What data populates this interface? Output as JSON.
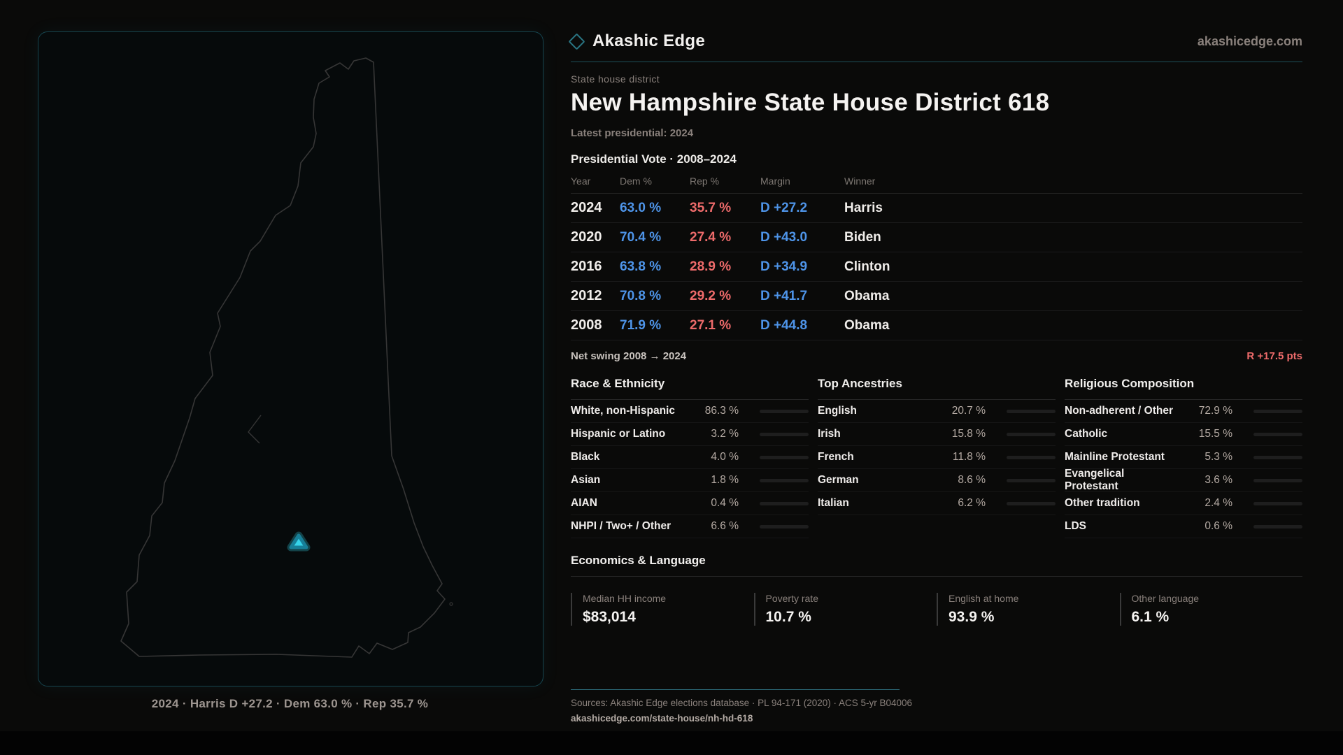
{
  "brand": {
    "name": "Akashic Edge",
    "domain": "akashicedge.com",
    "logo_icon": "diamond-icon"
  },
  "page": {
    "kicker": "State house district",
    "title": "New Hampshire State House District 618",
    "latest": "Latest presidential: 2024"
  },
  "map": {
    "caption": "2024 · Harris D +27.2 · Dem 63.0 % · Rep 35.7 %"
  },
  "election_table": {
    "title": "Presidential Vote · 2008–2024",
    "columns": [
      "Year",
      "Dem %",
      "Rep %",
      "Margin",
      "Winner"
    ],
    "rows": [
      {
        "year": "2024",
        "dem": "63.0 %",
        "rep": "35.7 %",
        "margin": "D +27.2",
        "winner": "Harris"
      },
      {
        "year": "2020",
        "dem": "70.4 %",
        "rep": "27.4 %",
        "margin": "D +43.0",
        "winner": "Biden"
      },
      {
        "year": "2016",
        "dem": "63.8 %",
        "rep": "28.9 %",
        "margin": "D +34.9",
        "winner": "Clinton"
      },
      {
        "year": "2012",
        "dem": "70.8 %",
        "rep": "29.2 %",
        "margin": "D +41.7",
        "winner": "Obama"
      },
      {
        "year": "2008",
        "dem": "71.9 %",
        "rep": "27.1 %",
        "margin": "D +44.8",
        "winner": "Obama"
      }
    ],
    "net_swing_label": "Net swing 2008 → 2024",
    "net_swing_value": "R +17.5 pts"
  },
  "demographics": {
    "race": {
      "title": "Race & Ethnicity",
      "rows": [
        {
          "label": "White, non-Hispanic",
          "value": "86.3 %",
          "pct": 86.3
        },
        {
          "label": "Hispanic or Latino",
          "value": "3.2 %",
          "pct": 3.2
        },
        {
          "label": "Black",
          "value": "4.0 %",
          "pct": 4.0
        },
        {
          "label": "Asian",
          "value": "1.8 %",
          "pct": 1.8
        },
        {
          "label": "AIAN",
          "value": "0.4 %",
          "pct": 0.4
        },
        {
          "label": "NHPI / Two+ / Other",
          "value": "6.6 %",
          "pct": 6.6
        }
      ]
    },
    "ancestries": {
      "title": "Top Ancestries",
      "rows": [
        {
          "label": "English",
          "value": "20.7 %",
          "pct": 20.7
        },
        {
          "label": "Irish",
          "value": "15.8 %",
          "pct": 15.8
        },
        {
          "label": "French",
          "value": "11.8 %",
          "pct": 11.8
        },
        {
          "label": "German",
          "value": "8.6 %",
          "pct": 8.6
        },
        {
          "label": "Italian",
          "value": "6.2 %",
          "pct": 6.2
        }
      ]
    },
    "religion": {
      "title": "Religious Composition",
      "rows": [
        {
          "label": "Non-adherent / Other",
          "value": "72.9 %",
          "pct": 72.9
        },
        {
          "label": "Catholic",
          "value": "15.5 %",
          "pct": 15.5
        },
        {
          "label": "Mainline Protestant",
          "value": "5.3 %",
          "pct": 5.3
        },
        {
          "label": "Evangelical Protestant",
          "value": "3.6 %",
          "pct": 3.6
        },
        {
          "label": "Other tradition",
          "value": "2.4 %",
          "pct": 2.4
        },
        {
          "label": "LDS",
          "value": "0.6 %",
          "pct": 0.6
        }
      ]
    }
  },
  "economics": {
    "title": "Economics & Language",
    "stats": [
      {
        "label": "Median HH income",
        "value": "$83,014"
      },
      {
        "label": "Poverty rate",
        "value": "10.7 %"
      },
      {
        "label": "English at home",
        "value": "93.9 %"
      },
      {
        "label": "Other language",
        "value": "6.1 %"
      }
    ]
  },
  "footer": {
    "sources": "Sources: Akashic Edge elections database · PL 94-171 (2020) · ACS 5-yr B04006",
    "permalink": "akashicedge.com/state-house/nh-hd-618"
  },
  "colors": {
    "dem": "#4e94e8",
    "rep": "#ee6b6b",
    "accent": "#35d3ea",
    "accent_dim": "#1d4f5a",
    "map_border": "#16454f",
    "footer_rule": "#2e6f7e"
  }
}
